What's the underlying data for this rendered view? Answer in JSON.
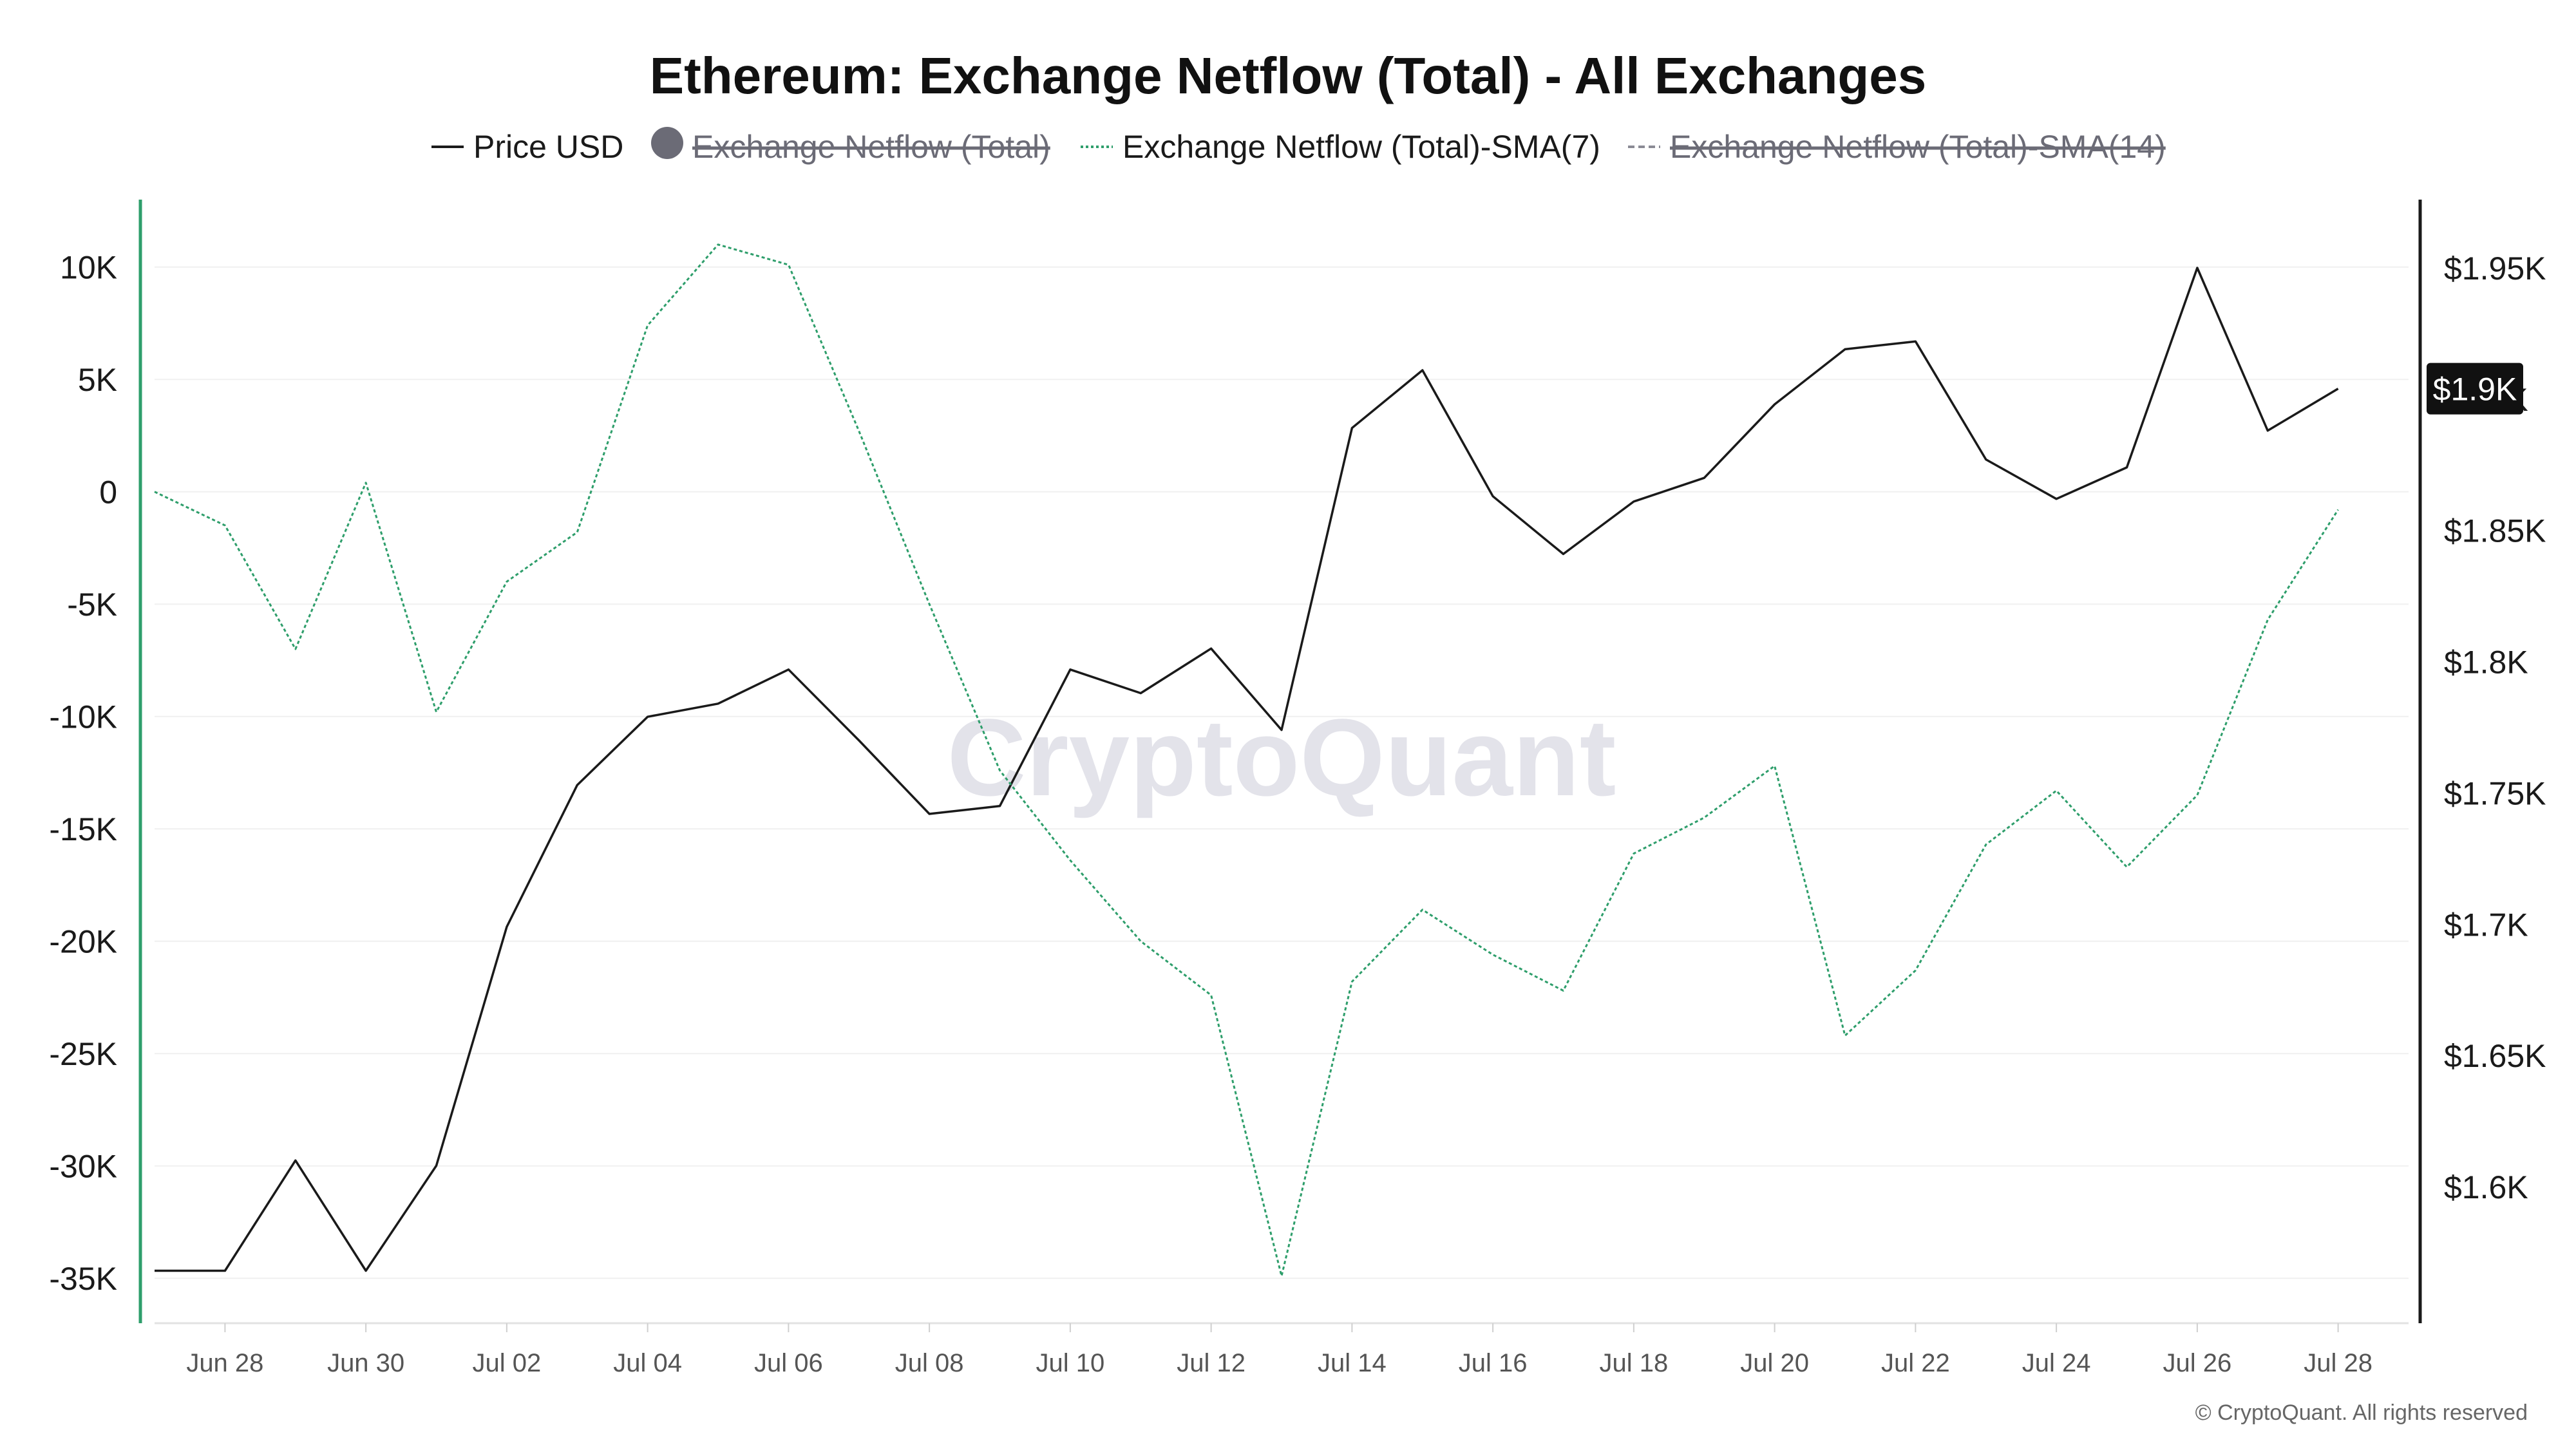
{
  "chart_data": {
    "type": "line",
    "title": "Ethereum: Exchange Netflow (Total) - All Exchanges",
    "legend": {
      "placement": "top-center",
      "entries": [
        {
          "label": "Price USD",
          "marker": "line",
          "color": "#1a1a1a",
          "disabled": false
        },
        {
          "label": "Exchange Netflow (Total)",
          "marker": "dot",
          "color": "#6b6b76",
          "disabled": true
        },
        {
          "label": "Exchange Netflow (Total)-SMA(7)",
          "marker": "dotted-line",
          "color": "#2e9e6b",
          "disabled": false
        },
        {
          "label": "Exchange Netflow (Total)-SMA(14)",
          "marker": "dashed-line",
          "color": "#8a8a94",
          "disabled": true
        }
      ]
    },
    "x": [
      "2023-06-27",
      "2023-06-28",
      "2023-06-29",
      "2023-06-30",
      "2023-07-01",
      "2023-07-02",
      "2023-07-03",
      "2023-07-04",
      "2023-07-05",
      "2023-07-06",
      "2023-07-07",
      "2023-07-08",
      "2023-07-09",
      "2023-07-10",
      "2023-07-11",
      "2023-07-12",
      "2023-07-13",
      "2023-07-14",
      "2023-07-15",
      "2023-07-16",
      "2023-07-17",
      "2023-07-18",
      "2023-07-19",
      "2023-07-20",
      "2023-07-21",
      "2023-07-22",
      "2023-07-23",
      "2023-07-24",
      "2023-07-25",
      "2023-07-26",
      "2023-07-27",
      "2023-07-28"
    ],
    "x_tick_labels": [
      {
        "date": "2023-06-28",
        "label": "Jun 28"
      },
      {
        "date": "2023-06-30",
        "label": "Jun 30"
      },
      {
        "date": "2023-07-02",
        "label": "Jul 02"
      },
      {
        "date": "2023-07-04",
        "label": "Jul 04"
      },
      {
        "date": "2023-07-06",
        "label": "Jul 06"
      },
      {
        "date": "2023-07-08",
        "label": "Jul 08"
      },
      {
        "date": "2023-07-10",
        "label": "Jul 10"
      },
      {
        "date": "2023-07-12",
        "label": "Jul 12"
      },
      {
        "date": "2023-07-14",
        "label": "Jul 14"
      },
      {
        "date": "2023-07-16",
        "label": "Jul 16"
      },
      {
        "date": "2023-07-18",
        "label": "Jul 18"
      },
      {
        "date": "2023-07-20",
        "label": "Jul 20"
      },
      {
        "date": "2023-07-22",
        "label": "Jul 22"
      },
      {
        "date": "2023-07-24",
        "label": "Jul 24"
      },
      {
        "date": "2023-07-26",
        "label": "Jul 26"
      },
      {
        "date": "2023-07-28",
        "label": "Jul 28"
      }
    ],
    "x_range": [
      "2023-06-27",
      "2023-07-29"
    ],
    "y_left": {
      "range": [
        -37000,
        13000
      ],
      "ticks": [
        10000,
        5000,
        0,
        -5000,
        -10000,
        -15000,
        -20000,
        -25000,
        -30000,
        -35000
      ],
      "tick_labels": [
        "10K",
        "5K",
        "0",
        "-5K",
        "-10K",
        "-15K",
        "-20K",
        "-25K",
        "-30K",
        "-35K"
      ],
      "gridlines": true
    },
    "y_right": {
      "range": [
        1548,
        1976
      ],
      "ticks": [
        1950,
        1900,
        1850,
        1800,
        1750,
        1700,
        1650,
        1600
      ],
      "tick_labels": [
        "$1.95K",
        "$1.9K",
        "$1.85K",
        "$1.8K",
        "$1.75K",
        "$1.7K",
        "$1.65K",
        "$1.6K"
      ]
    },
    "series": [
      {
        "name": "Price USD",
        "axis": "right",
        "color": "#1a1a1a",
        "style": "solid",
        "values": [
          1568,
          1568,
          1610,
          1568,
          1608,
          1699,
          1753,
          1779,
          1784,
          1797,
          1770,
          1742,
          1745,
          1797,
          1788,
          1805,
          1774,
          1889,
          1911,
          1863,
          1841,
          1861,
          1870,
          1898,
          1919,
          1922,
          1877,
          1862,
          1874,
          1950,
          1888,
          1904
        ]
      },
      {
        "name": "Exchange Netflow (Total)-SMA(7)",
        "axis": "left",
        "color": "#2e9e6b",
        "style": "dotted",
        "values": [
          0,
          -1500,
          -7000,
          400,
          -9800,
          -4000,
          -1800,
          7400,
          11000,
          10100,
          2700,
          -5000,
          -12400,
          -16400,
          -20000,
          -22400,
          -34900,
          -21800,
          -18600,
          -20600,
          -22200,
          -16100,
          -14500,
          -12200,
          -24200,
          -21300,
          -15700,
          -13300,
          -16700,
          -13500,
          -5700,
          -800
        ]
      }
    ],
    "price_tag": {
      "label": "$1.9K",
      "value": 1904,
      "color": "#111111"
    },
    "watermark": "CryptoQuant",
    "copyright": "© CryptoQuant. All rights reserved"
  }
}
